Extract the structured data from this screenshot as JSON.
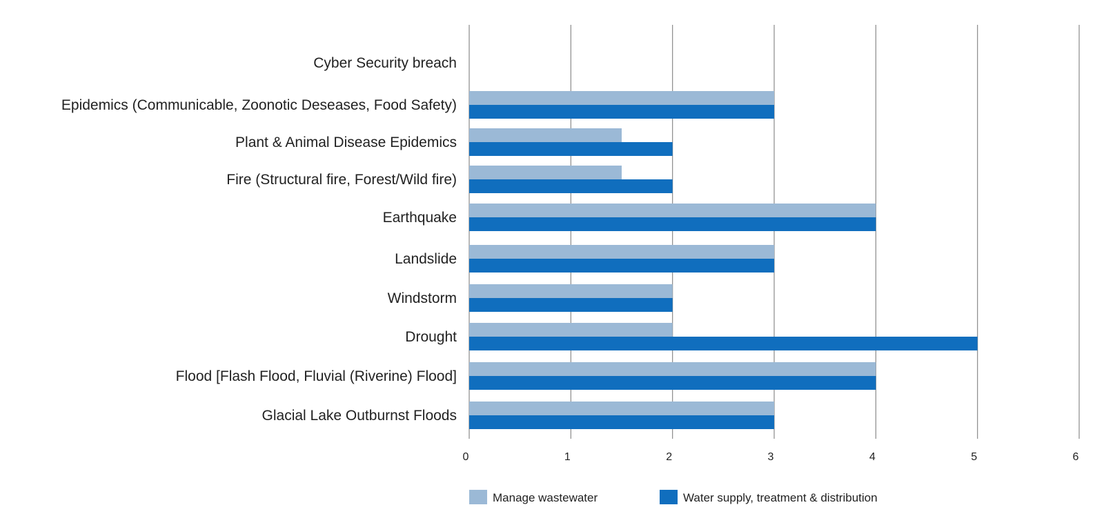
{
  "chart_data": {
    "type": "bar",
    "orientation": "horizontal",
    "categories": [
      "Cyber Security breach",
      "Epidemics (Communicable, Zoonotic Deseases, Food Safety)",
      "Plant & Animal Disease Epidemics",
      "Fire (Structural fire, Forest/Wild fire)",
      "Earthquake",
      "Landslide",
      "Windstorm",
      "Drought",
      "Flood [Flash Flood, Fluvial (Riverine) Flood]",
      "Glacial Lake Outburnst Floods"
    ],
    "series": [
      {
        "name": "Manage wastewater",
        "color": "#9bb9d6",
        "values": [
          0,
          3,
          1.5,
          1.5,
          4,
          3,
          2,
          2,
          4,
          3
        ]
      },
      {
        "name": "Water supply, treatment & distribution",
        "color": "#106ebe",
        "values": [
          0,
          3,
          2,
          2,
          4,
          3,
          2,
          5,
          4,
          3
        ]
      }
    ],
    "xlim": [
      0,
      6
    ],
    "xticks": [
      "0",
      "1",
      "2",
      "3",
      "4",
      "5",
      "6"
    ],
    "grid": "vertical",
    "legend_position": "bottom-center",
    "gridline_color": "#8a8a8a"
  }
}
